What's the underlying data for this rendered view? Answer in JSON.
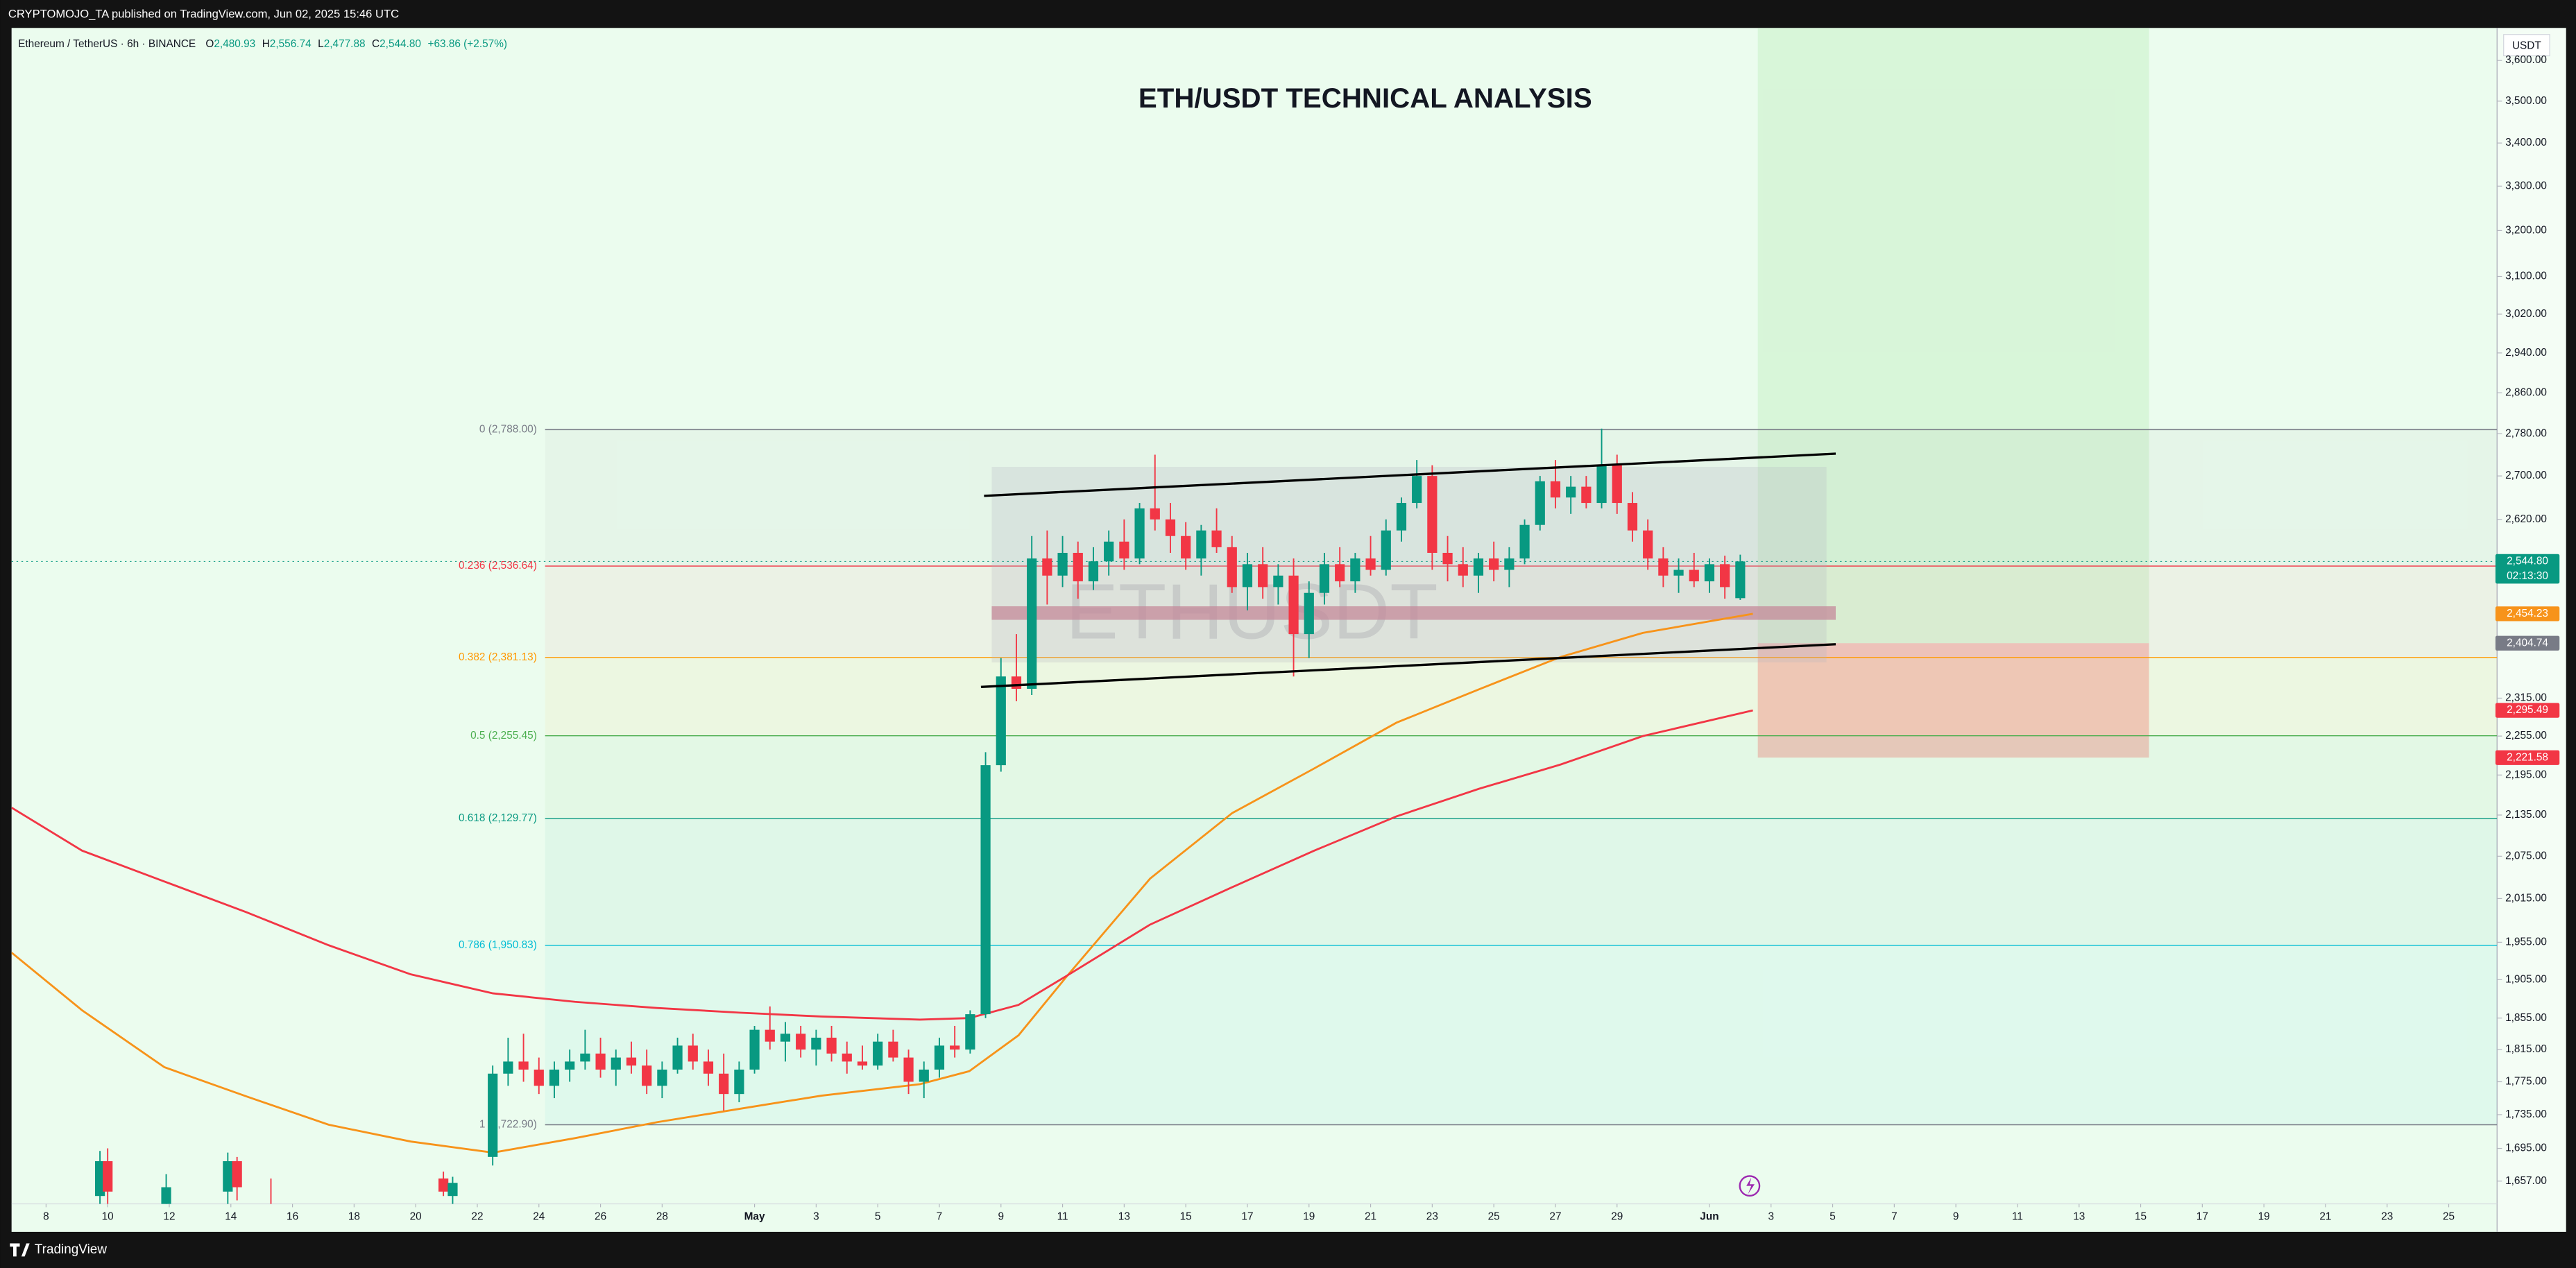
{
  "header": {
    "text": "CRYPTOMOJO_TA published on TradingView.com, Jun 02, 2025 15:46 UTC",
    "brand": "TradingView"
  },
  "chart_data": {
    "type": "candlestick",
    "title": "ETH/USDT TECHNICAL ANALYSIS",
    "symbol": "Ethereum / TetherUS · 6h · BINANCE",
    "watermark": "ETHUSDT",
    "currency": "USDT",
    "legend": [
      {
        "key": "O",
        "value": "2,480.93"
      },
      {
        "key": "H",
        "value": "2,556.74"
      },
      {
        "key": "L",
        "value": "2,477.88"
      },
      {
        "key": "C",
        "value": "2,544.80"
      }
    ],
    "change": "+63.86 (+2.57%)",
    "log_scale": true,
    "grid": false,
    "up_color": "#089981",
    "down_color": "#f23645",
    "xlim": [
      96.88,
      177.57
    ],
    "ylim": [
      1631,
      3682
    ],
    "xticks": [
      {
        "value": 98,
        "label": "8"
      },
      {
        "value": 100,
        "label": "10"
      },
      {
        "value": 102,
        "label": "12"
      },
      {
        "value": 104,
        "label": "14"
      },
      {
        "value": 106,
        "label": "16"
      },
      {
        "value": 108,
        "label": "18"
      },
      {
        "value": 110,
        "label": "20"
      },
      {
        "value": 112,
        "label": "22"
      },
      {
        "value": 114,
        "label": "24"
      },
      {
        "value": 116,
        "label": "26"
      },
      {
        "value": 118,
        "label": "28"
      },
      {
        "value": 121,
        "label": "May"
      },
      {
        "value": 123,
        "label": "3"
      },
      {
        "value": 125,
        "label": "5"
      },
      {
        "value": 127,
        "label": "7"
      },
      {
        "value": 129,
        "label": "9"
      },
      {
        "value": 131,
        "label": "11"
      },
      {
        "value": 133,
        "label": "13"
      },
      {
        "value": 135,
        "label": "15"
      },
      {
        "value": 137,
        "label": "17"
      },
      {
        "value": 139,
        "label": "19"
      },
      {
        "value": 141,
        "label": "21"
      },
      {
        "value": 143,
        "label": "23"
      },
      {
        "value": 145,
        "label": "25"
      },
      {
        "value": 147,
        "label": "27"
      },
      {
        "value": 149,
        "label": "29"
      },
      {
        "value": 152,
        "label": "Jun"
      },
      {
        "value": 154,
        "label": "3"
      },
      {
        "value": 156,
        "label": "5"
      },
      {
        "value": 158,
        "label": "7"
      },
      {
        "value": 160,
        "label": "9"
      },
      {
        "value": 162,
        "label": "11"
      },
      {
        "value": 164,
        "label": "13"
      },
      {
        "value": 166,
        "label": "15"
      },
      {
        "value": 168,
        "label": "17"
      },
      {
        "value": 170,
        "label": "19"
      },
      {
        "value": 172,
        "label": "21"
      },
      {
        "value": 174,
        "label": "23"
      },
      {
        "value": 176,
        "label": "25"
      }
    ],
    "yticks": [
      {
        "value": 1657,
        "label": "1,657.00"
      },
      {
        "value": 1695,
        "label": "1,695.00"
      },
      {
        "value": 1735,
        "label": "1,735.00"
      },
      {
        "value": 1775,
        "label": "1,775.00"
      },
      {
        "value": 1815,
        "label": "1,815.00"
      },
      {
        "value": 1855,
        "label": "1,855.00"
      },
      {
        "value": 1905,
        "label": "1,905.00"
      },
      {
        "value": 1955,
        "label": "1,955.00"
      },
      {
        "value": 2015,
        "label": "2,015.00"
      },
      {
        "value": 2075,
        "label": "2,075.00"
      },
      {
        "value": 2135,
        "label": "2,135.00"
      },
      {
        "value": 2195,
        "label": "2,195.00"
      },
      {
        "value": 2255,
        "label": "2,255.00"
      },
      {
        "value": 2315,
        "label": "2,315.00"
      },
      {
        "value": 2620,
        "label": "2,620.00"
      },
      {
        "value": 2700,
        "label": "2,700.00"
      },
      {
        "value": 2780,
        "label": "2,780.00"
      },
      {
        "value": 2860,
        "label": "2,860.00"
      },
      {
        "value": 2940,
        "label": "2,940.00"
      },
      {
        "value": 3020,
        "label": "3,020.00"
      },
      {
        "value": 3100,
        "label": "3,100.00"
      },
      {
        "value": 3200,
        "label": "3,200.00"
      },
      {
        "value": 3300,
        "label": "3,300.00"
      },
      {
        "value": 3400,
        "label": "3,400.00"
      },
      {
        "value": 3500,
        "label": "3,500.00"
      },
      {
        "value": 3600,
        "label": "3,600.00"
      }
    ],
    "x": [
      99.75,
      100,
      101.9,
      103.9,
      104.2,
      105.3,
      110.9,
      111.2,
      112.5,
      113,
      113.5,
      114,
      114.5,
      115,
      115.5,
      116,
      116.5,
      117,
      117.5,
      118,
      118.5,
      119,
      119.5,
      120,
      120.5,
      121,
      121.5,
      122,
      122.5,
      123,
      123.5,
      124,
      124.5,
      125,
      125.5,
      126,
      126.5,
      127,
      127.5,
      128,
      128.5,
      129,
      129.5,
      130,
      130.5,
      131,
      131.5,
      132,
      132.5,
      133,
      133.5,
      134,
      134.5,
      135,
      135.5,
      136,
      136.5,
      137,
      137.5,
      138,
      138.5,
      139,
      139.5,
      140,
      140.5,
      141,
      141.5,
      142,
      142.5,
      143,
      143.5,
      144,
      144.5,
      145,
      145.5,
      146,
      146.5,
      147,
      147.5,
      148,
      148.5,
      149,
      149.5,
      150,
      150.5,
      151,
      151.5,
      152,
      152.5,
      153
    ],
    "open": [
      1640,
      1680,
      1630,
      1645,
      1680,
      1630,
      1660,
      1640,
      1685,
      1785,
      1800,
      1790,
      1770,
      1790,
      1800,
      1810,
      1790,
      1805,
      1795,
      1770,
      1790,
      1820,
      1800,
      1785,
      1760,
      1790,
      1840,
      1825,
      1835,
      1815,
      1830,
      1810,
      1800,
      1795,
      1825,
      1805,
      1775,
      1790,
      1820,
      1815,
      1860,
      2210,
      2350,
      2330,
      2550,
      2520,
      2560,
      2510,
      2545,
      2580,
      2550,
      2640,
      2620,
      2590,
      2550,
      2600,
      2570,
      2500,
      2540,
      2500,
      2520,
      2420,
      2490,
      2540,
      2510,
      2550,
      2530,
      2600,
      2650,
      2700,
      2560,
      2540,
      2520,
      2550,
      2530,
      2550,
      2610,
      2690,
      2660,
      2680,
      2650,
      2720,
      2650,
      2600,
      2550,
      2520,
      2530,
      2510,
      2540,
      2480.93
    ],
    "high": [
      1692,
      1695,
      1665,
      1690,
      1685,
      1660,
      1668,
      1662,
      1795,
      1830,
      1835,
      1805,
      1800,
      1815,
      1840,
      1830,
      1815,
      1825,
      1815,
      1800,
      1830,
      1835,
      1815,
      1810,
      1800,
      1845,
      1870,
      1850,
      1845,
      1840,
      1845,
      1825,
      1820,
      1835,
      1840,
      1815,
      1800,
      1830,
      1845,
      1865,
      2230,
      2380,
      2420,
      2590,
      2600,
      2590,
      2580,
      2570,
      2600,
      2620,
      2650,
      2740,
      2650,
      2615,
      2610,
      2640,
      2590,
      2560,
      2570,
      2540,
      2550,
      2510,
      2560,
      2570,
      2560,
      2590,
      2620,
      2660,
      2730,
      2720,
      2590,
      2570,
      2560,
      2580,
      2570,
      2620,
      2700,
      2730,
      2700,
      2700,
      2790,
      2740,
      2670,
      2620,
      2570,
      2550,
      2560,
      2550,
      2555,
      2556.74
    ],
    "low": [
      1620,
      1630,
      1610,
      1630,
      1635,
      1610,
      1640,
      1630,
      1675,
      1770,
      1775,
      1760,
      1755,
      1775,
      1790,
      1780,
      1770,
      1785,
      1760,
      1755,
      1785,
      1790,
      1770,
      1740,
      1750,
      1785,
      1815,
      1800,
      1805,
      1795,
      1800,
      1785,
      1790,
      1790,
      1800,
      1760,
      1755,
      1780,
      1805,
      1810,
      1855,
      2200,
      2310,
      2320,
      2470,
      2500,
      2480,
      2495,
      2520,
      2530,
      2540,
      2600,
      2560,
      2530,
      2520,
      2560,
      2490,
      2460,
      2480,
      2470,
      2350,
      2380,
      2470,
      2500,
      2490,
      2520,
      2520,
      2580,
      2640,
      2530,
      2510,
      2500,
      2490,
      2510,
      2500,
      2540,
      2600,
      2640,
      2630,
      2640,
      2640,
      2630,
      2580,
      2530,
      2500,
      2490,
      2500,
      2490,
      2480,
      2477.88
    ],
    "close": [
      1680,
      1645,
      1650,
      1680,
      1650,
      1620,
      1645,
      1655,
      1785,
      1800,
      1790,
      1770,
      1790,
      1800,
      1810,
      1790,
      1805,
      1795,
      1770,
      1790,
      1820,
      1800,
      1785,
      1760,
      1790,
      1840,
      1825,
      1835,
      1815,
      1830,
      1810,
      1800,
      1795,
      1825,
      1805,
      1775,
      1790,
      1820,
      1815,
      1860,
      2210,
      2350,
      2330,
      2550,
      2520,
      2560,
      2510,
      2545,
      2580,
      2550,
      2640,
      2620,
      2590,
      2550,
      2600,
      2570,
      2500,
      2540,
      2500,
      2520,
      2420,
      2490,
      2540,
      2510,
      2550,
      2530,
      2600,
      2650,
      2700,
      2560,
      2540,
      2520,
      2550,
      2530,
      2550,
      2610,
      2690,
      2660,
      2680,
      2650,
      2720,
      2650,
      2600,
      2550,
      2520,
      2530,
      2510,
      2540,
      2500,
      2544.8
    ],
    "lines": [
      {
        "color": "#f7931a",
        "x": [
          96.88,
          99.17,
          101.84,
          104.51,
          107.17,
          109.84,
          112.51,
          115.17,
          117.84,
          120.51,
          123.17,
          126.37,
          127.97,
          129.57,
          131.17,
          133.84,
          136.51,
          139.17,
          141.84,
          144.51,
          147.17,
          149.84,
          153.41
        ],
        "values": [
          1941,
          1865,
          1793,
          1757,
          1723,
          1703,
          1690,
          1707,
          1726,
          1742,
          1758,
          1772,
          1788,
          1833,
          1911,
          2043,
          2138,
          2205,
          2276,
          2329,
          2382,
          2422,
          2454.23
        ]
      },
      {
        "color": "#f23645",
        "x": [
          96.88,
          99.17,
          101.84,
          104.51,
          107.17,
          109.84,
          112.51,
          115.17,
          117.84,
          120.51,
          123.17,
          126.37,
          127.97,
          129.57,
          131.17,
          133.84,
          136.51,
          139.17,
          141.84,
          144.51,
          147.17,
          149.84,
          153.41
        ],
        "values": [
          2146,
          2083,
          2039,
          1996,
          1951,
          1912,
          1887,
          1876,
          1868,
          1862,
          1857,
          1853,
          1855,
          1872,
          1911,
          1979,
          2031,
          2083,
          2133,
          2174,
          2211,
          2255,
          2295.49
        ]
      }
    ],
    "fib": {
      "x_start": 114.2,
      "levels": [
        {
          "value": 2788,
          "label": "0 (2,788.00)",
          "color": "#787b86"
        },
        {
          "value": 2536.64,
          "label": "0.236 (2,536.64)",
          "color": "#f23645"
        },
        {
          "value": 2381.13,
          "label": "0.382 (2,381.13)",
          "color": "#ff9800"
        },
        {
          "value": 2255.45,
          "label": "0.5 (2,255.45)",
          "color": "#4caf50"
        },
        {
          "value": 2129.77,
          "label": "0.618 (2,129.77)",
          "color": "#089981"
        },
        {
          "value": 1950.83,
          "label": "0.786 (1,950.83)",
          "color": "#00bcd4"
        },
        {
          "value": 1722.9,
          "label": "1 (1,722.90)",
          "color": "#787b86"
        }
      ]
    },
    "channel": [
      {
        "x": [
          128.45,
          156.1
        ],
        "y": [
          2663,
          2742
        ]
      },
      {
        "x": [
          128.35,
          156.1
        ],
        "y": [
          2333,
          2403
        ]
      }
    ],
    "range_box": {
      "x": [
        128.7,
        155.8
      ],
      "y": [
        2373,
        2717
      ]
    },
    "support_band": {
      "x": [
        128.7,
        156.1
      ],
      "y": [
        2444,
        2467
      ]
    },
    "long_position": {
      "x": [
        153.57,
        166.27
      ],
      "entry": 2404.74,
      "stop": 2221.58
    },
    "price_tags": [
      {
        "value": 2544.8,
        "label": "2,544.80",
        "sub": "02:13:30",
        "color": "#089981"
      },
      {
        "value": 2454.23,
        "label": "2,454.23",
        "color": "#f7931a"
      },
      {
        "value": 2404.74,
        "label": "2,404.74",
        "color": "#787b86"
      },
      {
        "value": 2295.49,
        "label": "2,295.49",
        "color": "#f23645"
      },
      {
        "value": 2221.58,
        "label": "2,221.58",
        "color": "#f23645"
      }
    ]
  }
}
